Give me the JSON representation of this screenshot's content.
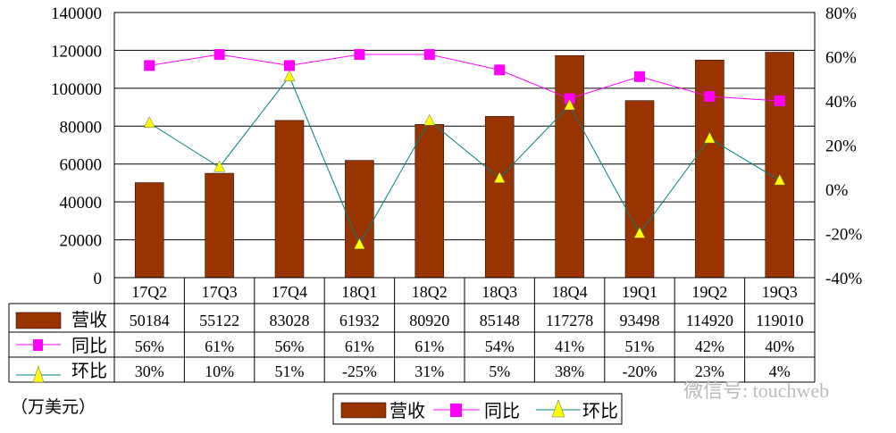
{
  "chart_data": {
    "type": "bar+line",
    "categories": [
      "17Q2",
      "17Q3",
      "17Q4",
      "18Q1",
      "18Q2",
      "18Q3",
      "18Q4",
      "19Q1",
      "19Q2",
      "19Q3"
    ],
    "series": [
      {
        "name": "营收",
        "type": "bar",
        "axis": "left",
        "values": [
          50184,
          55122,
          83028,
          61932,
          80920,
          85148,
          117278,
          93498,
          114920,
          119010
        ],
        "labels": [
          "50184",
          "55122",
          "83028",
          "61932",
          "80920",
          "85148",
          "117278",
          "93498",
          "114920",
          "119010"
        ]
      },
      {
        "name": "同比",
        "type": "line",
        "axis": "right",
        "values": [
          56,
          61,
          56,
          61,
          61,
          54,
          41,
          51,
          42,
          40
        ],
        "labels": [
          "56%",
          "61%",
          "56%",
          "61%",
          "61%",
          "54%",
          "41%",
          "51%",
          "42%",
          "40%"
        ]
      },
      {
        "name": "环比",
        "type": "line",
        "axis": "right",
        "values": [
          30,
          10,
          51,
          -25,
          31,
          5,
          38,
          -20,
          23,
          4
        ],
        "labels": [
          "30%",
          "10%",
          "51%",
          "-25%",
          "31%",
          "5%",
          "38%",
          "-20%",
          "23%",
          "4%"
        ]
      }
    ],
    "y_left": {
      "range": [
        0,
        140000
      ],
      "ticks": [
        "0",
        "20000",
        "40000",
        "60000",
        "80000",
        "100000",
        "120000",
        "140000"
      ]
    },
    "y_right": {
      "range": [
        -40,
        80
      ],
      "ticks": [
        "-40%",
        "-20%",
        "0%",
        "20%",
        "40%",
        "60%",
        "80%"
      ]
    },
    "unit": "（万美元）",
    "grid": true,
    "legend_placement": "bottom",
    "data_table": true,
    "colors": {
      "bar": "#993300",
      "yoy": "#FF00FF",
      "qoq_line": "#008080",
      "qoq_marker": "#FFFF00"
    }
  },
  "watermark": "微信号: touchweb"
}
